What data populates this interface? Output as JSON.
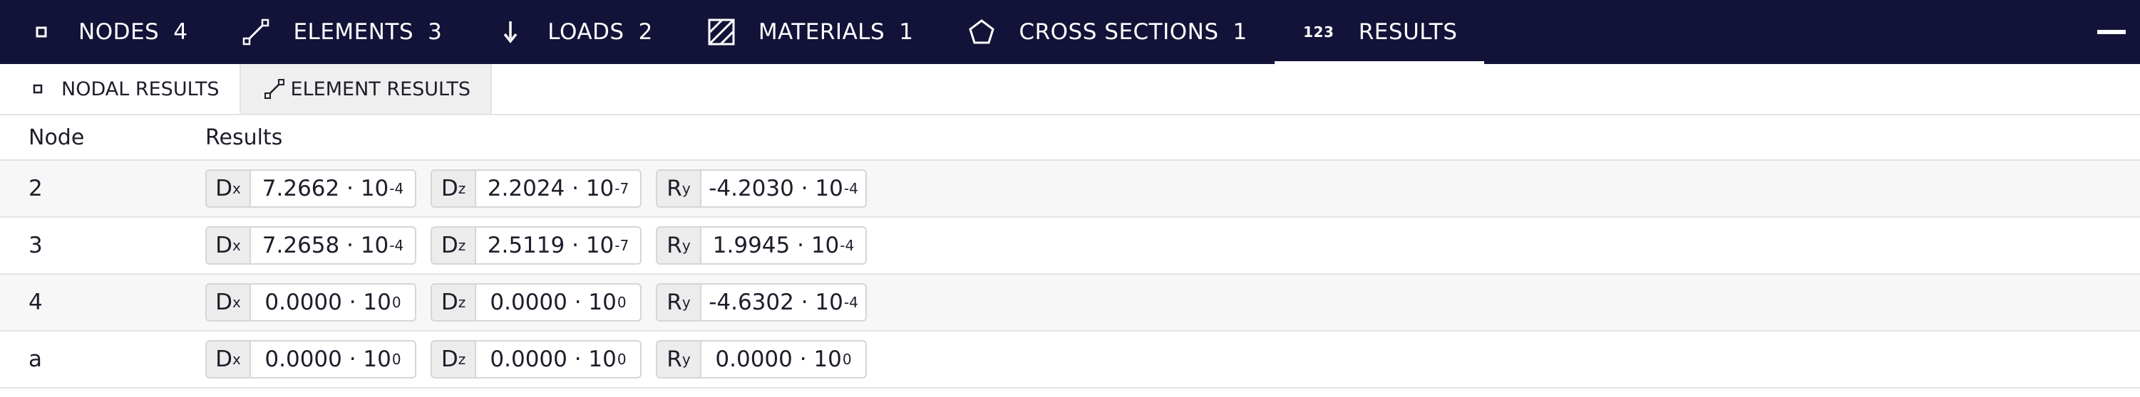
{
  "tabs": [
    {
      "label": "NODES",
      "count": "4",
      "icon": "node-square-icon"
    },
    {
      "label": "ELEMENTS",
      "count": "3",
      "icon": "element-line-icon"
    },
    {
      "label": "LOADS",
      "count": "2",
      "icon": "load-arrow-icon"
    },
    {
      "label": "MATERIALS",
      "count": "1",
      "icon": "material-hatch-icon"
    },
    {
      "label": "CROSS SECTIONS",
      "count": "1",
      "icon": "pentagon-icon"
    },
    {
      "label": "RESULTS",
      "count": "",
      "icon": "numbers-icon",
      "icon_text": "123",
      "active": true
    }
  ],
  "subtabs": [
    {
      "label": "NODAL RESULTS",
      "icon": "node-square-icon",
      "active": true
    },
    {
      "label": "ELEMENT RESULTS",
      "icon": "element-line-icon"
    }
  ],
  "table": {
    "headers": {
      "node": "Node",
      "results": "Results"
    },
    "labels": {
      "dx": "D",
      "dx_sub": "x",
      "dz": "D",
      "dz_sub": "z",
      "ry": "R",
      "ry_sub": "y"
    },
    "rows": [
      {
        "node": "2",
        "dx": {
          "m": "7.2662 · 10",
          "e": "-4"
        },
        "dz": {
          "m": "2.2024 · 10",
          "e": "-7"
        },
        "ry": {
          "m": "-4.2030 · 10",
          "e": "-4"
        }
      },
      {
        "node": "3",
        "dx": {
          "m": "7.2658 · 10",
          "e": "-4"
        },
        "dz": {
          "m": "2.5119 · 10",
          "e": "-7"
        },
        "ry": {
          "m": "1.9945 · 10",
          "e": "-4"
        }
      },
      {
        "node": "4",
        "dx": {
          "m": "0.0000 · 10",
          "e": "0"
        },
        "dz": {
          "m": "0.0000 · 10",
          "e": "0"
        },
        "ry": {
          "m": "-4.6302 · 10",
          "e": "-4"
        }
      },
      {
        "node": "a",
        "dx": {
          "m": "0.0000 · 10",
          "e": "0"
        },
        "dz": {
          "m": "0.0000 · 10",
          "e": "0"
        },
        "ry": {
          "m": "0.0000 · 10",
          "e": "0"
        }
      }
    ]
  },
  "colors": {
    "topbar": "#131339",
    "text": "#1d1d2b",
    "border": "#d6d6d6"
  }
}
